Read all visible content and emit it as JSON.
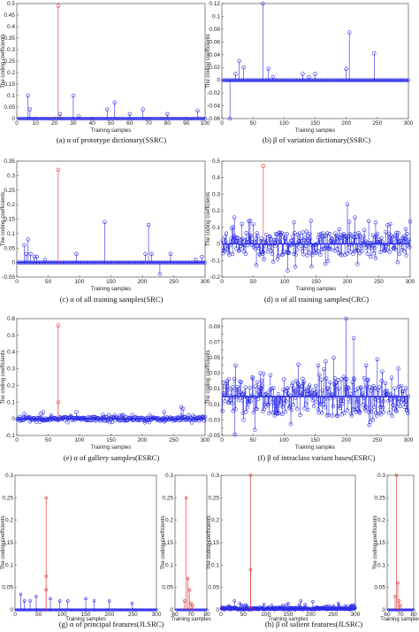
{
  "figure": {
    "panels": [
      {
        "id": "a",
        "caption": "(a) α of prototype dictionary(SSRC)"
      },
      {
        "id": "b",
        "caption": "(b) β of variation dictionary(SSRC)"
      },
      {
        "id": "c",
        "caption": "(c) α of all training samples(SRC)"
      },
      {
        "id": "d",
        "caption": "(d) α of all training samples(CRC)"
      },
      {
        "id": "e",
        "caption": "(e) α of gallery samples(ESRC)"
      },
      {
        "id": "f",
        "caption": "(f) β of intraclass variant bases(ESRC)"
      },
      {
        "id": "g",
        "caption": "(g) α of principal features(JLSRC)"
      },
      {
        "id": "h",
        "caption": "(h) β of salient features(JLSRC)"
      }
    ]
  },
  "chart_data": [
    {
      "type": "stem",
      "panel": "a",
      "xlabel": "Training samples",
      "ylabel": "The coding coefficients",
      "xlim": [
        0,
        100
      ],
      "ylim": [
        0,
        0.5
      ],
      "xticks": [
        0,
        10,
        20,
        30,
        40,
        50,
        60,
        70,
        80,
        90,
        100
      ],
      "yticks": [
        0,
        0.05,
        0.1,
        0.15,
        0.2,
        0.25,
        0.3,
        0.35,
        0.4,
        0.45,
        0.5
      ],
      "highlight": [
        {
          "x": 22,
          "y": 0.49
        }
      ],
      "stems": [
        [
          6,
          0.1
        ],
        [
          7,
          0.04
        ],
        [
          23,
          0.02
        ],
        [
          30,
          0.1
        ],
        [
          33,
          0.01
        ],
        [
          48,
          0.04
        ],
        [
          52,
          0.07
        ],
        [
          60,
          0.02
        ],
        [
          67,
          0.04
        ],
        [
          80,
          0.02
        ],
        [
          96,
          0.035
        ]
      ]
    },
    {
      "type": "stem",
      "panel": "b",
      "xlabel": "Training samples",
      "ylabel": "The coding coefficients",
      "xlim": [
        0,
        300
      ],
      "ylim": [
        -0.06,
        0.12
      ],
      "xticks": [
        0,
        50,
        100,
        150,
        200,
        250,
        300
      ],
      "yticks": [
        -0.06,
        -0.04,
        -0.02,
        0,
        0.02,
        0.04,
        0.06,
        0.08,
        0.1,
        0.12
      ],
      "stems": [
        [
          13,
          -0.06
        ],
        [
          22,
          0.01
        ],
        [
          28,
          0.03
        ],
        [
          35,
          0.02
        ],
        [
          66,
          0.12
        ],
        [
          75,
          0.018
        ],
        [
          82,
          0.005
        ],
        [
          130,
          0.01
        ],
        [
          140,
          0.005
        ],
        [
          150,
          0.01
        ],
        [
          200,
          0.018
        ],
        [
          205,
          0.075
        ],
        [
          245,
          0.042
        ]
      ]
    },
    {
      "type": "stem",
      "panel": "c",
      "xlabel": "Training samples",
      "ylabel": "The coding coefficients",
      "xlim": [
        0,
        300
      ],
      "ylim": [
        -0.05,
        0.35
      ],
      "xticks": [
        0,
        50,
        100,
        150,
        200,
        250,
        300
      ],
      "yticks": [
        -0.05,
        0,
        0.05,
        0.1,
        0.15,
        0.2,
        0.25,
        0.3,
        0.35
      ],
      "highlight": [
        {
          "x": 66,
          "y": 0.32
        }
      ],
      "stems": [
        [
          12,
          0.06
        ],
        [
          15,
          0.03
        ],
        [
          18,
          0.08
        ],
        [
          22,
          0.03
        ],
        [
          28,
          0.02
        ],
        [
          32,
          0.02
        ],
        [
          45,
          0.01
        ],
        [
          95,
          0.03
        ],
        [
          140,
          0.14
        ],
        [
          205,
          0.03
        ],
        [
          210,
          0.13
        ],
        [
          215,
          0.03
        ],
        [
          228,
          -0.04
        ],
        [
          245,
          0.03
        ],
        [
          285,
          0.01
        ],
        [
          295,
          0.02
        ]
      ]
    },
    {
      "type": "stem",
      "panel": "d",
      "xlabel": "Training samples",
      "ylabel": "The coding coefficients",
      "xlim": [
        0,
        300
      ],
      "ylim": [
        -0.2,
        0.5
      ],
      "xticks": [
        0,
        50,
        100,
        150,
        200,
        250,
        300
      ],
      "yticks": [
        -0.2,
        -0.1,
        0,
        0.1,
        0.2,
        0.3,
        0.4,
        0.5
      ],
      "highlight": [
        {
          "x": 66,
          "y": 0.47
        }
      ],
      "dense": {
        "count": 300,
        "amp": 0.07,
        "seed": 11
      },
      "stems": [
        [
          20,
          0.16
        ],
        [
          45,
          0.14
        ],
        [
          105,
          -0.16
        ],
        [
          115,
          0.13
        ],
        [
          142,
          0.14
        ],
        [
          200,
          0.24
        ],
        [
          212,
          0.16
        ],
        [
          245,
          0.13
        ],
        [
          268,
          0.12
        ],
        [
          280,
          -0.11
        ]
      ]
    },
    {
      "type": "stem",
      "panel": "e",
      "xlabel": "Training samples",
      "ylabel": "The coding coefficients",
      "xlim": [
        0,
        300
      ],
      "ylim": [
        -0.1,
        0.6
      ],
      "xticks": [
        0,
        50,
        100,
        150,
        200,
        250,
        300
      ],
      "yticks": [
        -0.1,
        0,
        0.1,
        0.2,
        0.3,
        0.4,
        0.5,
        0.6
      ],
      "highlight": [
        {
          "x": 66,
          "y": 0.56
        },
        {
          "x": 66,
          "y": 0.1
        }
      ],
      "dense": {
        "count": 300,
        "amp": 0.012,
        "seed": 5
      },
      "stems": [
        [
          12,
          0.03
        ],
        [
          38,
          0.03
        ],
        [
          42,
          0.04
        ],
        [
          55,
          0.02
        ],
        [
          95,
          0.04
        ],
        [
          170,
          0.02
        ],
        [
          235,
          0.04
        ],
        [
          262,
          0.07
        ],
        [
          265,
          0.06
        ]
      ]
    },
    {
      "type": "stem",
      "panel": "f",
      "xlabel": "Training samples",
      "ylabel": "The coding coefficients",
      "xlim": [
        0,
        300
      ],
      "ylim": [
        -0.05,
        0.1
      ],
      "xticks": [
        0,
        50,
        100,
        150,
        200,
        250,
        300
      ],
      "yticks": [
        -0.05,
        -0.04,
        -0.03,
        -0.02,
        -0.01,
        0,
        0.01,
        0.02,
        0.03,
        0.04,
        0.05,
        0.06,
        0.07,
        0.08,
        0.09,
        0.1
      ],
      "dense": {
        "count": 300,
        "amp": 0.025,
        "seed": 23
      },
      "stems": [
        [
          22,
          0.04
        ],
        [
          35,
          -0.03
        ],
        [
          62,
          0.03
        ],
        [
          155,
          0.04
        ],
        [
          180,
          0.05
        ],
        [
          200,
          0.1
        ],
        [
          212,
          0.075
        ],
        [
          232,
          0.04
        ],
        [
          260,
          -0.02
        ]
      ]
    },
    {
      "type": "stem",
      "panel": "g-main",
      "xlabel": "Training samples",
      "ylabel": "The coding coefficients",
      "xlim": [
        0,
        300
      ],
      "ylim": [
        0,
        0.3
      ],
      "xticks": [
        0,
        50,
        100,
        150,
        200,
        250,
        300
      ],
      "yticks": [
        0,
        0.05,
        0.1,
        0.15,
        0.2,
        0.25,
        0.3
      ],
      "highlight": [
        {
          "x": 66,
          "y": 0.25
        },
        {
          "x": 66,
          "y": 0.075
        },
        {
          "x": 66,
          "y": 0.045
        }
      ],
      "stems": [
        [
          12,
          0.035
        ],
        [
          20,
          0.02
        ],
        [
          32,
          0.02
        ],
        [
          45,
          0.03
        ],
        [
          75,
          0.025
        ],
        [
          95,
          0.02
        ],
        [
          112,
          0.02
        ],
        [
          150,
          0.025
        ],
        [
          168,
          0.02
        ],
        [
          200,
          0.02
        ],
        [
          248,
          0.015
        ]
      ]
    },
    {
      "type": "stem",
      "panel": "g-zoom",
      "xlabel": "Training samples",
      "ylabel": "The coding coefficients",
      "xlim": [
        60,
        80
      ],
      "ylim": [
        0,
        0.3
      ],
      "xticks": [
        60,
        70,
        80
      ],
      "yticks": [
        0,
        0.05,
        0.1,
        0.15,
        0.2,
        0.25,
        0.3
      ],
      "highlight": [
        {
          "x": 67,
          "y": 0.25
        },
        {
          "x": 68,
          "y": 0.07
        },
        {
          "x": 69,
          "y": 0.045
        },
        {
          "x": 66,
          "y": 0.02
        },
        {
          "x": 70,
          "y": 0.015
        },
        {
          "x": 71,
          "y": 0.01
        }
      ]
    },
    {
      "type": "stem",
      "panel": "h-main",
      "xlabel": "Training samples",
      "ylabel": "The coding coefficients",
      "xlim": [
        0,
        300
      ],
      "ylim": [
        0,
        0.3
      ],
      "xticks": [
        0,
        50,
        100,
        150,
        200,
        250,
        300
      ],
      "yticks": [
        0,
        0.05,
        0.1,
        0.15,
        0.2,
        0.25,
        0.3
      ],
      "highlight": [
        {
          "x": 66,
          "y": 0.3
        },
        {
          "x": 66,
          "y": 0.09
        }
      ],
      "dense": {
        "count": 300,
        "amp": 0.01,
        "seed": 37,
        "positive": true
      },
      "stems": [
        [
          30,
          0.02
        ],
        [
          42,
          0.015
        ],
        [
          150,
          0.015
        ],
        [
          178,
          0.02
        ],
        [
          205,
          0.018
        ],
        [
          262,
          0.015
        ]
      ]
    },
    {
      "type": "stem",
      "panel": "h-zoom",
      "xlabel": "Training samples",
      "ylabel": "The coding coefficients",
      "xlim": [
        60,
        80
      ],
      "ylim": [
        0,
        0.3
      ],
      "xticks": [
        60,
        70,
        80
      ],
      "yticks": [
        0,
        0.05,
        0.1,
        0.15,
        0.2,
        0.25,
        0.3
      ],
      "highlight": [
        {
          "x": 67,
          "y": 0.3
        },
        {
          "x": 68,
          "y": 0.06
        },
        {
          "x": 66,
          "y": 0.03
        },
        {
          "x": 69,
          "y": 0.02
        },
        {
          "x": 70,
          "y": 0.01
        }
      ]
    }
  ]
}
